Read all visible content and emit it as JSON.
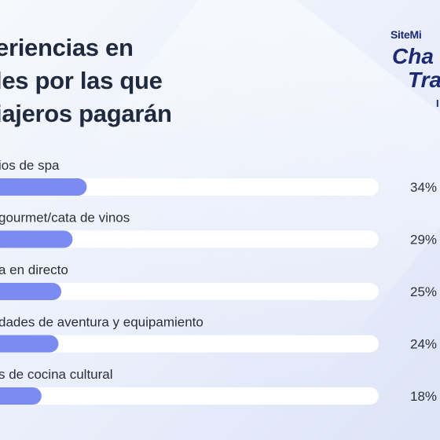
{
  "title_lines": [
    "eriencias en",
    "les por las que",
    "iajeros pagarán"
  ],
  "logo": {
    "brand": "SiteMi",
    "line1": "Cha",
    "line2": "Tra",
    "line3": "I"
  },
  "chart_data": {
    "type": "bar",
    "orientation": "horizontal",
    "categories": [
      "ios de spa",
      " gourmet/cata de vinos",
      "a en directo",
      "dades de aventura y equipamiento",
      "s de cocina cultural"
    ],
    "values": [
      34,
      29,
      25,
      24,
      18
    ],
    "value_labels": [
      "34%",
      "29%",
      "25%",
      "24%",
      "18%"
    ],
    "xlim": [
      0,
      100
    ],
    "colors": {
      "fill": "#7b8cf0",
      "track": "#ffffff",
      "text": "#2b2f38"
    }
  }
}
